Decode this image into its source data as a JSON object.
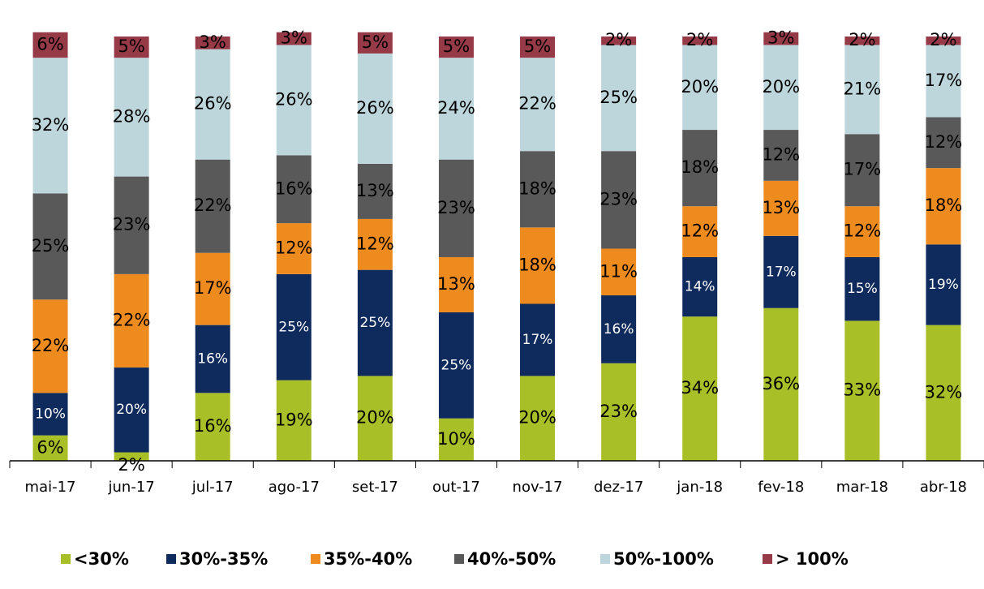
{
  "chart_data": {
    "type": "stacked_bar",
    "categories": [
      "mai-17",
      "jun-17",
      "jul-17",
      "ago-17",
      "set-17",
      "out-17",
      "nov-17",
      "dez-17",
      "jan-18",
      "fev-18",
      "mar-18",
      "abr-18"
    ],
    "ylim": [
      0,
      100
    ],
    "legend": "bottom",
    "series": [
      {
        "name": "<30%",
        "color": "#a9bf27",
        "label_color": "#000000",
        "values": [
          6,
          2,
          16,
          19,
          20,
          10,
          20,
          23,
          34,
          36,
          33,
          32
        ],
        "value_labels": [
          "6%",
          "2%",
          "16%",
          "19%",
          "20%",
          "10%",
          "20%",
          "23%",
          "34%",
          "36%",
          "33%",
          "32%"
        ]
      },
      {
        "name": "30%-35%",
        "color": "#0f2a5c",
        "label_color": "#ffffff",
        "values": [
          10,
          20,
          16,
          25,
          25,
          25,
          17,
          16,
          14,
          17,
          15,
          19
        ],
        "value_labels": [
          "10%",
          "20%",
          "16%",
          "25%",
          "25%",
          "25%",
          "17%",
          "16%",
          "14%",
          "17%",
          "15%",
          "19%"
        ]
      },
      {
        "name": "35%-40%",
        "color": "#ee8b1f",
        "label_color": "#000000",
        "values": [
          22,
          22,
          17,
          12,
          12,
          13,
          18,
          11,
          12,
          13,
          12,
          18
        ],
        "value_labels": [
          "22%",
          "22%",
          "17%",
          "12%",
          "12%",
          "13%",
          "18%",
          "11%",
          "12%",
          "13%",
          "12%",
          "18%"
        ]
      },
      {
        "name": "40%-50%",
        "color": "#595959",
        "label_color": "#000000",
        "values": [
          25,
          23,
          22,
          16,
          13,
          23,
          18,
          23,
          18,
          12,
          17,
          12
        ],
        "value_labels": [
          "25%",
          "23%",
          "22%",
          "16%",
          "13%",
          "23%",
          "18%",
          "23%",
          "18%",
          "12%",
          "17%",
          "12%"
        ]
      },
      {
        "name": "50%-100%",
        "color": "#bdd6dc",
        "label_color": "#000000",
        "values": [
          32,
          28,
          26,
          26,
          26,
          24,
          22,
          25,
          20,
          20,
          21,
          17
        ],
        "value_labels": [
          "32%",
          "28%",
          "26%",
          "26%",
          "26%",
          "24%",
          "22%",
          "25%",
          "20%",
          "20%",
          "21%",
          "17%"
        ]
      },
      {
        "name": "> 100%",
        "color": "#953a46",
        "label_color": "#000000",
        "values": [
          6,
          5,
          3,
          3,
          5,
          5,
          5,
          2,
          2,
          3,
          2,
          2
        ],
        "value_labels": [
          "6%",
          "5%",
          "3%",
          "3%",
          "5%",
          "5%",
          "5%",
          "2%",
          "2%",
          "3%",
          "2%",
          "2%"
        ]
      }
    ]
  }
}
